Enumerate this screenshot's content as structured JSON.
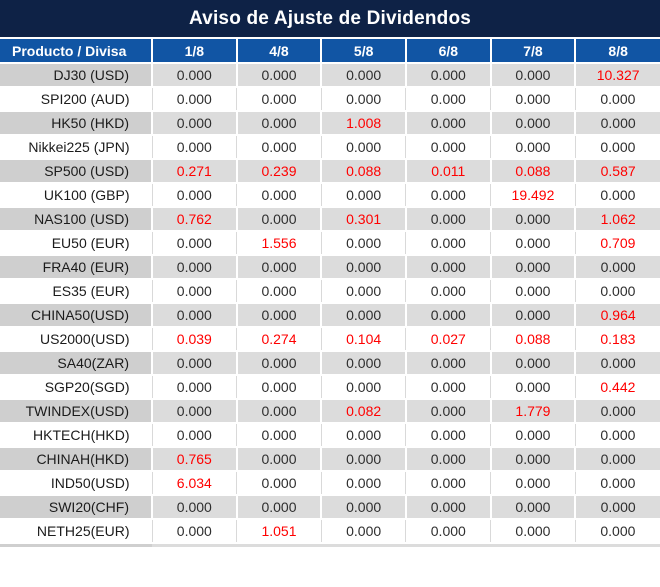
{
  "title": "Aviso de Ajuste de Dividendos",
  "colors": {
    "title_bg": "#0E2246",
    "header_bg": "#1155A4",
    "row_gray_product": "#CFCFCF",
    "row_gray_value": "#DCDCDC",
    "row_white": "#FFFFFF",
    "highlight_red": "#FF0000",
    "text_dark": "#1B1B1B"
  },
  "table": {
    "product_header": "Producto / Divisa",
    "date_headers": [
      "1/8",
      "4/8",
      "5/8",
      "6/8",
      "7/8",
      "8/8"
    ],
    "rows": [
      {
        "product": "DJ30 (USD)",
        "values": [
          "0.000",
          "0.000",
          "0.000",
          "0.000",
          "0.000",
          "10.327"
        ],
        "red": [
          5
        ]
      },
      {
        "product": "SPI200 (AUD)",
        "values": [
          "0.000",
          "0.000",
          "0.000",
          "0.000",
          "0.000",
          "0.000"
        ],
        "red": []
      },
      {
        "product": "HK50 (HKD)",
        "values": [
          "0.000",
          "0.000",
          "1.008",
          "0.000",
          "0.000",
          "0.000"
        ],
        "red": [
          2
        ]
      },
      {
        "product": "Nikkei225 (JPN)",
        "values": [
          "0.000",
          "0.000",
          "0.000",
          "0.000",
          "0.000",
          "0.000"
        ],
        "red": []
      },
      {
        "product": "SP500 (USD)",
        "values": [
          "0.271",
          "0.239",
          "0.088",
          "0.011",
          "0.088",
          "0.587"
        ],
        "red": [
          0,
          1,
          2,
          3,
          4,
          5
        ]
      },
      {
        "product": "UK100 (GBP)",
        "values": [
          "0.000",
          "0.000",
          "0.000",
          "0.000",
          "19.492",
          "0.000"
        ],
        "red": [
          4
        ]
      },
      {
        "product": "NAS100 (USD)",
        "values": [
          "0.762",
          "0.000",
          "0.301",
          "0.000",
          "0.000",
          "1.062"
        ],
        "red": [
          0,
          2,
          5
        ]
      },
      {
        "product": "EU50 (EUR)",
        "values": [
          "0.000",
          "1.556",
          "0.000",
          "0.000",
          "0.000",
          "0.709"
        ],
        "red": [
          1,
          5
        ]
      },
      {
        "product": "FRA40 (EUR)",
        "values": [
          "0.000",
          "0.000",
          "0.000",
          "0.000",
          "0.000",
          "0.000"
        ],
        "red": []
      },
      {
        "product": "ES35 (EUR)",
        "values": [
          "0.000",
          "0.000",
          "0.000",
          "0.000",
          "0.000",
          "0.000"
        ],
        "red": []
      },
      {
        "product": "CHINA50(USD)",
        "values": [
          "0.000",
          "0.000",
          "0.000",
          "0.000",
          "0.000",
          "0.964"
        ],
        "red": [
          5
        ]
      },
      {
        "product": "US2000(USD)",
        "values": [
          "0.039",
          "0.274",
          "0.104",
          "0.027",
          "0.088",
          "0.183"
        ],
        "red": [
          0,
          1,
          2,
          3,
          4,
          5
        ]
      },
      {
        "product": "SA40(ZAR)",
        "values": [
          "0.000",
          "0.000",
          "0.000",
          "0.000",
          "0.000",
          "0.000"
        ],
        "red": []
      },
      {
        "product": "SGP20(SGD)",
        "values": [
          "0.000",
          "0.000",
          "0.000",
          "0.000",
          "0.000",
          "0.442"
        ],
        "red": [
          5
        ]
      },
      {
        "product": "TWINDEX(USD)",
        "values": [
          "0.000",
          "0.000",
          "0.082",
          "0.000",
          "1.779",
          "0.000"
        ],
        "red": [
          2,
          4
        ]
      },
      {
        "product": "HKTECH(HKD)",
        "values": [
          "0.000",
          "0.000",
          "0.000",
          "0.000",
          "0.000",
          "0.000"
        ],
        "red": []
      },
      {
        "product": "CHINAH(HKD)",
        "values": [
          "0.765",
          "0.000",
          "0.000",
          "0.000",
          "0.000",
          "0.000"
        ],
        "red": [
          0
        ]
      },
      {
        "product": "IND50(USD)",
        "values": [
          "6.034",
          "0.000",
          "0.000",
          "0.000",
          "0.000",
          "0.000"
        ],
        "red": [
          0
        ]
      },
      {
        "product": "SWI20(CHF)",
        "values": [
          "0.000",
          "0.000",
          "0.000",
          "0.000",
          "0.000",
          "0.000"
        ],
        "red": []
      },
      {
        "product": "NETH25(EUR)",
        "values": [
          "0.000",
          "1.051",
          "0.000",
          "0.000",
          "0.000",
          "0.000"
        ],
        "red": [
          1
        ]
      }
    ]
  }
}
